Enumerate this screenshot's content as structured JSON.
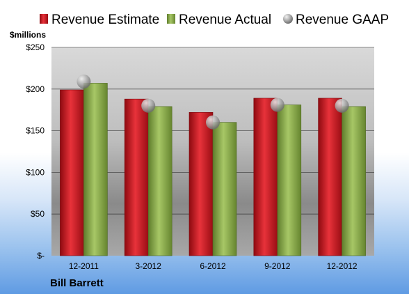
{
  "chart_data": {
    "type": "bar",
    "categories": [
      "12-2011",
      "3-2012",
      "6-2012",
      "9-2012",
      "12-2012"
    ],
    "series": [
      {
        "name": "Revenue Estimate",
        "kind": "bar",
        "color": "#c8141e",
        "values": [
          199,
          188,
          172,
          189,
          189
        ]
      },
      {
        "name": "Revenue Actual",
        "kind": "bar",
        "color": "#86a845",
        "values": [
          207,
          179,
          160,
          181,
          179
        ]
      },
      {
        "name": "Revenue GAAP",
        "kind": "point",
        "color": "#a6a6a6",
        "values": [
          209,
          180,
          160,
          181,
          180
        ]
      }
    ],
    "ylim": [
      0,
      250
    ],
    "yticks": [
      {
        "value": 0,
        "label": "$-"
      },
      {
        "value": 50,
        "label": "$50"
      },
      {
        "value": 100,
        "label": "$100"
      },
      {
        "value": 150,
        "label": "$150"
      },
      {
        "value": 200,
        "label": "$200"
      },
      {
        "value": 250,
        "label": "$250"
      }
    ],
    "ylabel": "$millions",
    "grid": true,
    "legend_position": "top"
  },
  "footer": {
    "company": "Bill Barrett"
  }
}
